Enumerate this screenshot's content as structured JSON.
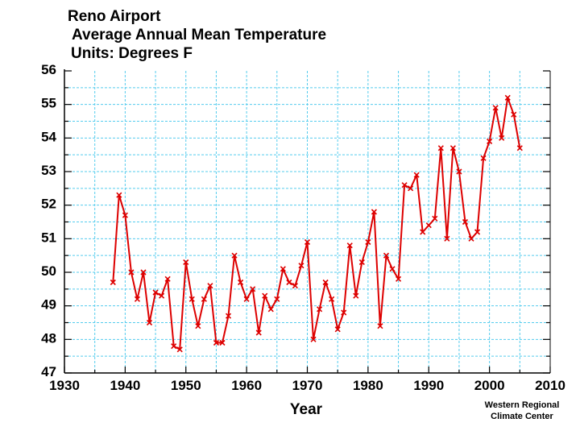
{
  "chart_data": {
    "type": "line",
    "title": "Reno Airport",
    "subtitle": "Average Annual Mean Temperature",
    "units": "Units:  Degrees F",
    "xlabel": "Year",
    "ylabel": "",
    "xlim": [
      1930,
      2010
    ],
    "ylim": [
      47,
      56
    ],
    "x_ticks": [
      "1930",
      "1940",
      "1950",
      "1960",
      "1970",
      "1980",
      "1990",
      "2000",
      "2010"
    ],
    "y_ticks": [
      "47",
      "48",
      "49",
      "50",
      "51",
      "52",
      "53",
      "54",
      "55",
      "56"
    ],
    "grid": true,
    "series": [
      {
        "name": "Average Annual Mean Temperature",
        "color": "#dd0000",
        "marker": "x",
        "x": [
          1938,
          1939,
          1940,
          1941,
          1942,
          1943,
          1944,
          1945,
          1946,
          1947,
          1948,
          1949,
          1950,
          1951,
          1952,
          1953,
          1954,
          1955,
          1956,
          1957,
          1958,
          1959,
          1960,
          1961,
          1962,
          1963,
          1964,
          1965,
          1966,
          1967,
          1968,
          1969,
          1970,
          1971,
          1972,
          1973,
          1974,
          1975,
          1976,
          1977,
          1978,
          1979,
          1980,
          1981,
          1982,
          1983,
          1984,
          1985,
          1986,
          1987,
          1988,
          1989,
          1990,
          1991,
          1992,
          1993,
          1994,
          1995,
          1996,
          1997,
          1998,
          1999,
          2000,
          2001,
          2002,
          2003,
          2004,
          2005
        ],
        "values": [
          49.7,
          52.3,
          51.7,
          50.0,
          49.2,
          50.0,
          48.5,
          49.4,
          49.3,
          49.8,
          47.8,
          47.7,
          50.3,
          49.2,
          48.4,
          49.2,
          49.6,
          47.9,
          47.9,
          48.7,
          50.5,
          49.7,
          49.2,
          49.5,
          48.2,
          49.3,
          48.9,
          49.2,
          50.1,
          49.7,
          49.6,
          50.2,
          50.9,
          48.0,
          48.9,
          49.7,
          49.2,
          48.3,
          48.8,
          50.8,
          49.3,
          50.3,
          50.9,
          51.8,
          48.4,
          50.5,
          50.1,
          49.8,
          52.6,
          52.5,
          52.9,
          51.2,
          51.4,
          51.6,
          53.7,
          51.0,
          53.7,
          53.0,
          51.5,
          51.0,
          51.2,
          53.4,
          53.9,
          54.9,
          54.0,
          55.2,
          54.7,
          53.7
        ]
      }
    ]
  },
  "credit": {
    "line1": "Western Regional",
    "line2": "Climate Center"
  },
  "colors": {
    "grid": "#55ccee",
    "series": "#dd0000",
    "axis": "#000000"
  }
}
